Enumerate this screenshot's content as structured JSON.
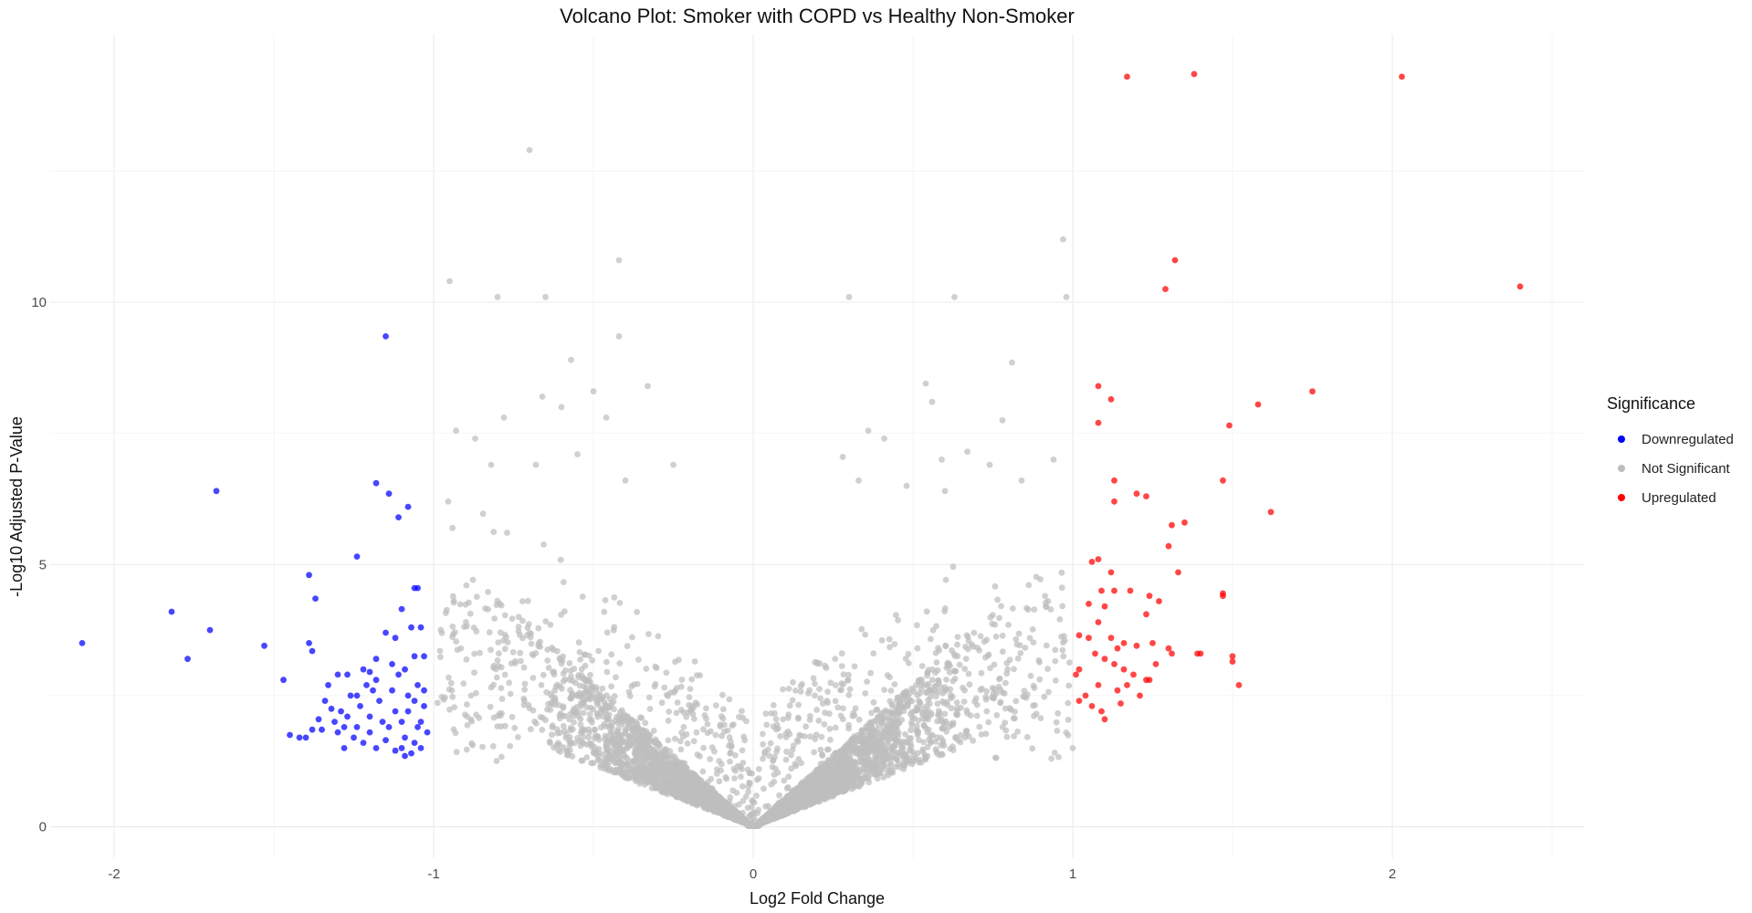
{
  "chart_data": {
    "type": "scatter",
    "title": "Volcano Plot: Smoker with COPD vs Healthy Non-Smoker",
    "xlabel": "Log2 Fold Change",
    "ylabel": "-Log10 Adjusted P-Value",
    "xlim": [
      -2.2,
      2.6
    ],
    "ylim": [
      -0.6,
      15.1
    ],
    "x_ticks": [
      -2,
      -1,
      0,
      1,
      2
    ],
    "x_tick_labels": [
      "-2",
      "-1",
      "0",
      "1",
      "2"
    ],
    "y_ticks": [
      0,
      5,
      10
    ],
    "y_tick_labels": [
      "0",
      "5",
      "10"
    ],
    "grid": true,
    "legend": {
      "title": "Significance",
      "position": "right",
      "entries": [
        {
          "label": "Downregulated",
          "color": "#0000ff"
        },
        {
          "label": "Not Significant",
          "color": "#bebebe"
        },
        {
          "label": "Upregulated",
          "color": "#ff0000"
        }
      ]
    },
    "series": [
      {
        "name": "Downregulated",
        "color": "#0000ff",
        "points": [
          [
            -2.1,
            3.5
          ],
          [
            -1.82,
            4.1
          ],
          [
            -1.77,
            3.2
          ],
          [
            -1.7,
            3.75
          ],
          [
            -1.68,
            6.4
          ],
          [
            -1.53,
            3.45
          ],
          [
            -1.47,
            2.8
          ],
          [
            -1.39,
            4.8
          ],
          [
            -1.38,
            3.35
          ],
          [
            -1.37,
            4.35
          ],
          [
            -1.39,
            3.5
          ],
          [
            -1.35,
            1.85
          ],
          [
            -1.33,
            2.7
          ],
          [
            -1.3,
            2.9
          ],
          [
            -1.27,
            2.9
          ],
          [
            -1.24,
            5.15
          ],
          [
            -1.22,
            3.0
          ],
          [
            -1.18,
            6.55
          ],
          [
            -1.15,
            9.35
          ],
          [
            -1.14,
            6.35
          ],
          [
            -1.12,
            3.6
          ],
          [
            -1.11,
            5.9
          ],
          [
            -1.08,
            6.1
          ],
          [
            -1.06,
            4.55
          ],
          [
            -1.05,
            4.55
          ],
          [
            -1.07,
            3.8
          ],
          [
            -1.04,
            3.8
          ],
          [
            -1.06,
            3.25
          ],
          [
            -1.03,
            3.25
          ],
          [
            -1.1,
            4.15
          ],
          [
            -1.15,
            3.7
          ],
          [
            -1.13,
            3.1
          ],
          [
            -1.09,
            3.0
          ],
          [
            -1.18,
            3.2
          ],
          [
            -1.2,
            2.95
          ],
          [
            -1.4,
            1.7
          ],
          [
            -1.42,
            1.7
          ],
          [
            -1.38,
            1.85
          ],
          [
            -1.45,
            1.75
          ],
          [
            -1.05,
            2.7
          ],
          [
            -1.08,
            2.5
          ],
          [
            -1.12,
            2.2
          ],
          [
            -1.16,
            2.0
          ],
          [
            -1.2,
            1.8
          ],
          [
            -1.25,
            1.7
          ],
          [
            -1.28,
            1.5
          ],
          [
            -1.22,
            1.6
          ],
          [
            -1.1,
            1.5
          ],
          [
            -1.07,
            1.4
          ],
          [
            -1.05,
            1.9
          ],
          [
            -1.03,
            2.3
          ],
          [
            -1.04,
            2.0
          ],
          [
            -1.06,
            1.6
          ],
          [
            -1.09,
            1.7
          ],
          [
            -1.14,
            1.9
          ],
          [
            -1.17,
            2.4
          ],
          [
            -1.19,
            2.6
          ],
          [
            -1.23,
            2.3
          ],
          [
            -1.26,
            2.5
          ],
          [
            -1.29,
            2.2
          ],
          [
            -1.31,
            2.0
          ],
          [
            -1.34,
            2.4
          ],
          [
            -1.3,
            1.8
          ],
          [
            -1.27,
            2.1
          ],
          [
            -1.24,
            1.9
          ],
          [
            -1.21,
            2.7
          ],
          [
            -1.18,
            2.8
          ],
          [
            -1.13,
            2.6
          ],
          [
            -1.11,
            2.9
          ],
          [
            -1.08,
            2.2
          ],
          [
            -1.04,
            1.5
          ],
          [
            -1.06,
            2.4
          ],
          [
            -1.1,
            2.0
          ],
          [
            -1.15,
            1.65
          ],
          [
            -1.18,
            1.5
          ],
          [
            -1.2,
            2.1
          ],
          [
            -1.24,
            2.5
          ],
          [
            -1.28,
            1.9
          ],
          [
            -1.32,
            2.25
          ],
          [
            -1.36,
            2.05
          ],
          [
            -1.12,
            1.45
          ],
          [
            -1.09,
            1.35
          ],
          [
            -1.02,
            1.8
          ],
          [
            -1.03,
            2.6
          ]
        ]
      },
      {
        "name": "Not Significant",
        "color": "#bebebe",
        "highlight_points": [
          [
            -0.7,
            12.9
          ],
          [
            -0.42,
            10.8
          ],
          [
            -0.95,
            10.4
          ],
          [
            -0.8,
            10.1
          ],
          [
            -0.65,
            10.1
          ],
          [
            -0.42,
            9.35
          ],
          [
            -0.57,
            8.9
          ],
          [
            -0.33,
            8.4
          ],
          [
            -0.5,
            8.3
          ],
          [
            -0.66,
            8.2
          ],
          [
            -0.6,
            8.0
          ],
          [
            -0.78,
            7.8
          ],
          [
            -0.93,
            7.55
          ],
          [
            -0.87,
            7.4
          ],
          [
            -0.46,
            7.8
          ],
          [
            -0.55,
            7.1
          ],
          [
            -0.68,
            6.9
          ],
          [
            -0.25,
            6.9
          ],
          [
            -0.82,
            6.9
          ],
          [
            -0.4,
            6.6
          ],
          [
            0.97,
            11.2
          ],
          [
            0.3,
            10.1
          ],
          [
            0.63,
            10.1
          ],
          [
            0.98,
            10.1
          ],
          [
            0.54,
            8.45
          ],
          [
            0.56,
            8.1
          ],
          [
            0.81,
            8.85
          ],
          [
            0.78,
            7.75
          ],
          [
            0.36,
            7.55
          ],
          [
            0.41,
            7.4
          ],
          [
            0.67,
            7.15
          ],
          [
            0.94,
            7.0
          ],
          [
            0.28,
            7.05
          ],
          [
            0.59,
            7.0
          ],
          [
            0.84,
            6.6
          ],
          [
            1.0,
            1.5
          ],
          [
            0.33,
            6.6
          ],
          [
            0.74,
            6.9
          ],
          [
            0.48,
            6.5
          ],
          [
            0.6,
            6.4
          ]
        ]
      },
      {
        "name": "Upregulated",
        "color": "#ff0000",
        "points": [
          [
            1.17,
            14.3
          ],
          [
            1.38,
            14.35
          ],
          [
            2.03,
            14.3
          ],
          [
            1.32,
            10.8
          ],
          [
            1.29,
            10.25
          ],
          [
            2.4,
            10.3
          ],
          [
            1.08,
            8.4
          ],
          [
            1.12,
            8.15
          ],
          [
            1.08,
            7.7
          ],
          [
            1.75,
            8.3
          ],
          [
            1.58,
            8.05
          ],
          [
            1.49,
            7.65
          ],
          [
            1.13,
            6.6
          ],
          [
            1.13,
            6.2
          ],
          [
            1.2,
            6.35
          ],
          [
            1.23,
            6.3
          ],
          [
            1.47,
            6.6
          ],
          [
            1.62,
            6.0
          ],
          [
            1.31,
            5.75
          ],
          [
            1.35,
            5.8
          ],
          [
            1.3,
            5.35
          ],
          [
            1.06,
            5.05
          ],
          [
            1.08,
            5.1
          ],
          [
            1.12,
            4.85
          ],
          [
            1.33,
            4.85
          ],
          [
            1.09,
            4.5
          ],
          [
            1.13,
            4.5
          ],
          [
            1.18,
            4.5
          ],
          [
            1.24,
            4.4
          ],
          [
            1.47,
            4.45
          ],
          [
            1.47,
            4.4
          ],
          [
            1.05,
            4.25
          ],
          [
            1.1,
            4.2
          ],
          [
            1.23,
            4.05
          ],
          [
            1.27,
            4.3
          ],
          [
            1.02,
            3.65
          ],
          [
            1.05,
            3.6
          ],
          [
            1.08,
            3.9
          ],
          [
            1.12,
            3.6
          ],
          [
            1.14,
            3.4
          ],
          [
            1.16,
            3.5
          ],
          [
            1.2,
            3.45
          ],
          [
            1.25,
            3.5
          ],
          [
            1.3,
            3.4
          ],
          [
            1.02,
            3.0
          ],
          [
            1.07,
            3.3
          ],
          [
            1.1,
            3.2
          ],
          [
            1.13,
            3.1
          ],
          [
            1.16,
            3.0
          ],
          [
            1.19,
            2.9
          ],
          [
            1.23,
            2.8
          ],
          [
            1.26,
            3.1
          ],
          [
            1.31,
            3.3
          ],
          [
            1.39,
            3.3
          ],
          [
            1.4,
            3.3
          ],
          [
            1.5,
            3.25
          ],
          [
            1.5,
            3.15
          ],
          [
            1.52,
            2.7
          ],
          [
            1.01,
            2.9
          ],
          [
            1.04,
            2.5
          ],
          [
            1.06,
            2.3
          ],
          [
            1.09,
            2.2
          ],
          [
            1.1,
            2.05
          ],
          [
            1.14,
            2.6
          ],
          [
            1.17,
            2.7
          ],
          [
            1.21,
            2.5
          ],
          [
            1.24,
            2.8
          ],
          [
            1.02,
            2.4
          ],
          [
            1.08,
            2.7
          ],
          [
            1.15,
            2.35
          ]
        ]
      }
    ]
  }
}
